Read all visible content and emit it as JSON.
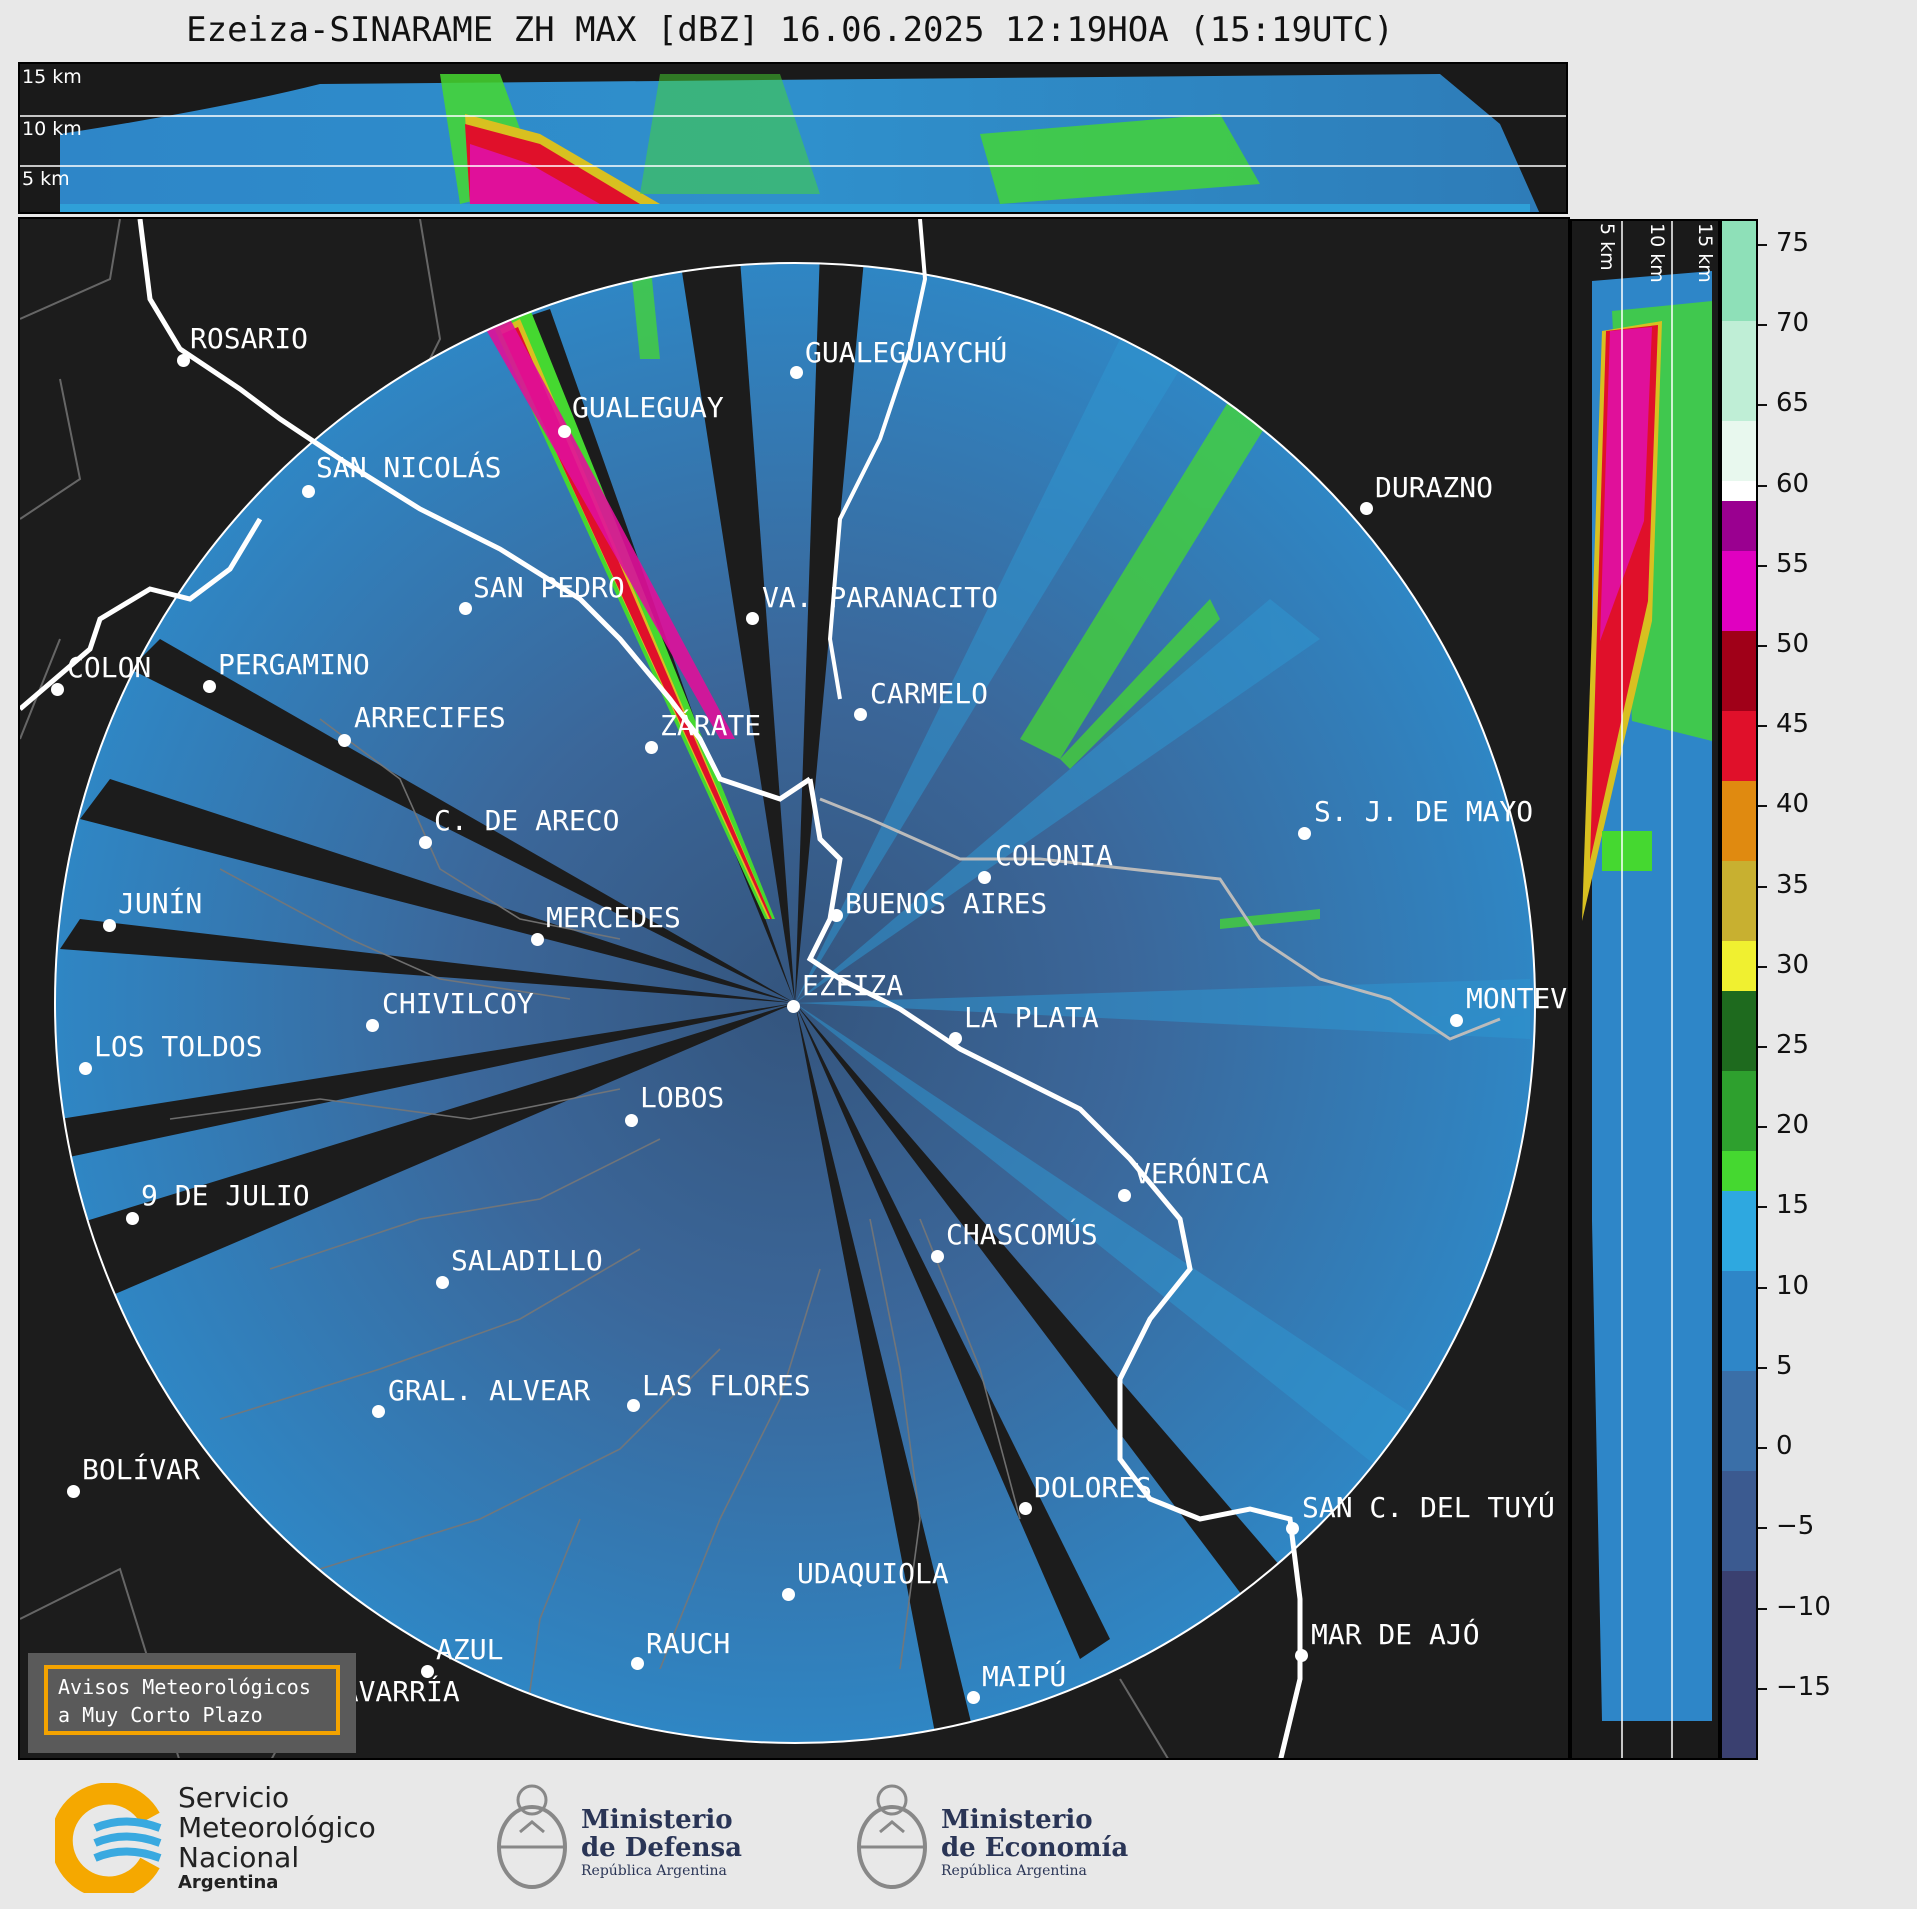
{
  "title": "Ezeiza-SINARAME ZH MAX [dBZ] 16.06.2025 12:19HOA (15:19UTC)",
  "height_labels": [
    "15 km",
    "10 km",
    "5 km"
  ],
  "side_height_labels": [
    "5 km",
    "10 km",
    "15 km"
  ],
  "colorbar": {
    "ticks": [
      "75",
      "70",
      "65",
      "60",
      "55",
      "50",
      "45",
      "40",
      "35",
      "30",
      "25",
      "20",
      "15",
      "10",
      "5",
      "0",
      "−5",
      "−10",
      "−15"
    ]
  },
  "cities": [
    "ROSARIO",
    "GUALEGUAYCHÚ",
    "GUALEGUAY",
    "SAN NICOLÁS",
    "DURAZNO",
    "SAN PEDRO",
    "VA. PARANACITO",
    "COLON",
    "PERGAMINO",
    "ARRECIFES",
    "ZÁRATE",
    "CARMELO",
    "S. J. DE MAYO",
    "C. DE ARECO",
    "COLONIA",
    "JUNÍN",
    "MERCEDES",
    "BUENOS AIRES",
    "EZEIZA",
    "CHIVILCOY",
    "MONTEV",
    "LA PLATA",
    "LOS TOLDOS",
    "LOBOS",
    "VERÓNICA",
    "9 DE JULIO",
    "CHASCOMÚS",
    "SALADILLO",
    "GRAL. ALVEAR",
    "LAS FLORES",
    "BOLÍVAR",
    "DOLORES",
    "SAN C. DEL TUYÚ",
    "UDAQUIOLA",
    "RAUCH",
    "MAR DE AJÓ",
    "AZUL",
    "OLAVARRÍA",
    "MAIPÚ"
  ],
  "avisos": {
    "line1": "Avisos Meteorológicos",
    "line2": "a Muy Corto Plazo"
  },
  "logos": {
    "smn": [
      "Servicio",
      "Meteorológico",
      "Nacional",
      "Argentina"
    ],
    "defensa": [
      "Ministerio",
      "de Defensa",
      "República Argentina"
    ],
    "economia": [
      "Ministerio",
      "de Economía",
      "República Argentina"
    ]
  },
  "colors": {
    "background": "#1c1c1c",
    "echo_base": "#2e7cb8",
    "echo_weak": "#3a6fa8",
    "strong_band": "#d4006a",
    "avisos_border": "#f4a300"
  }
}
